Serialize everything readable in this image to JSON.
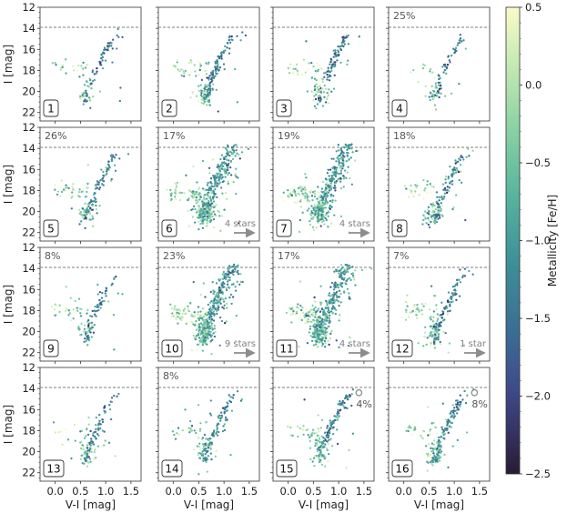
{
  "chart_data": {
    "type": "scatter",
    "layout": "4x4 grid of color-magnitude diagrams",
    "xlabel": "V-I [mag]",
    "ylabel": "I [mag]",
    "xlim": [
      -0.3,
      1.7
    ],
    "ylim": [
      22.8,
      12.0
    ],
    "xticks": [
      0.0,
      0.5,
      1.0,
      1.5
    ],
    "xtick_labels": [
      "0.0",
      "0.5",
      "1.0",
      "1.5"
    ],
    "yticks": [
      12,
      14,
      16,
      18,
      20,
      22
    ],
    "ytick_labels": [
      "12",
      "14",
      "16",
      "18",
      "20",
      "22"
    ],
    "reference_line_I": 13.9,
    "colorbar": {
      "label": "Metallicity [Fe/H]",
      "range": [
        -2.5,
        0.5
      ],
      "ticks": [
        0.5,
        0.0,
        -0.5,
        -1.0,
        -1.5,
        -2.0,
        -2.5
      ],
      "tick_labels": [
        "0.5",
        "0.0",
        "−0.5",
        "−1.0",
        "−1.5",
        "−2.0",
        "−2.5"
      ]
    },
    "panels": [
      {
        "id": 1,
        "label": "1",
        "percent": "",
        "stars_note": "",
        "circle_note": "",
        "n": 110,
        "density": "sparse",
        "rgb_color": -1.6
      },
      {
        "id": 2,
        "label": "2",
        "percent": "",
        "stars_note": "",
        "circle_note": "",
        "n": 200,
        "density": "medium",
        "rgb_color": -1.4
      },
      {
        "id": 3,
        "label": "3",
        "percent": "",
        "stars_note": "",
        "circle_note": "",
        "n": 170,
        "density": "medium",
        "rgb_color": -1.4
      },
      {
        "id": 4,
        "label": "4",
        "percent": "25%",
        "stars_note": "",
        "circle_note": "",
        "n": 95,
        "density": "sparse",
        "rgb_color": -1.5
      },
      {
        "id": 5,
        "label": "5",
        "percent": "26%",
        "stars_note": "",
        "circle_note": "",
        "n": 170,
        "density": "medium",
        "rgb_color": -1.4
      },
      {
        "id": 6,
        "label": "6",
        "percent": "17%",
        "stars_note": "4 stars",
        "circle_note": "",
        "n": 480,
        "density": "dense",
        "rgb_color": -1.1
      },
      {
        "id": 7,
        "label": "7",
        "percent": "19%",
        "stars_note": "4 stars",
        "circle_note": "",
        "n": 460,
        "density": "dense",
        "rgb_color": -1.1
      },
      {
        "id": 8,
        "label": "8",
        "percent": "18%",
        "stars_note": "",
        "circle_note": "",
        "n": 190,
        "density": "medium",
        "rgb_color": -1.3
      },
      {
        "id": 9,
        "label": "9",
        "percent": "8%",
        "stars_note": "",
        "circle_note": "",
        "n": 130,
        "density": "sparse",
        "rgb_color": -1.4
      },
      {
        "id": 10,
        "label": "10",
        "percent": "23%",
        "stars_note": "9 stars",
        "circle_note": "",
        "n": 500,
        "density": "dense",
        "rgb_color": -1.1
      },
      {
        "id": 11,
        "label": "11",
        "percent": "17%",
        "stars_note": "4 stars",
        "circle_note": "",
        "n": 470,
        "density": "dense",
        "rgb_color": -1.1
      },
      {
        "id": 12,
        "label": "12",
        "percent": "7%",
        "stars_note": "1 star",
        "circle_note": "",
        "n": 200,
        "density": "medium",
        "rgb_color": -1.4
      },
      {
        "id": 13,
        "label": "13",
        "percent": "",
        "stars_note": "",
        "circle_note": "",
        "n": 140,
        "density": "sparse",
        "rgb_color": -1.3
      },
      {
        "id": 14,
        "label": "14",
        "percent": "8%",
        "stars_note": "",
        "circle_note": "",
        "n": 170,
        "density": "medium",
        "rgb_color": -1.3
      },
      {
        "id": 15,
        "label": "15",
        "percent": "",
        "stars_note": "",
        "circle_note": "4%",
        "n": 200,
        "density": "medium",
        "rgb_color": -1.3
      },
      {
        "id": 16,
        "label": "16",
        "percent": "",
        "stars_note": "",
        "circle_note": "8%",
        "n": 210,
        "density": "medium",
        "rgb_color": -1.3
      }
    ]
  }
}
